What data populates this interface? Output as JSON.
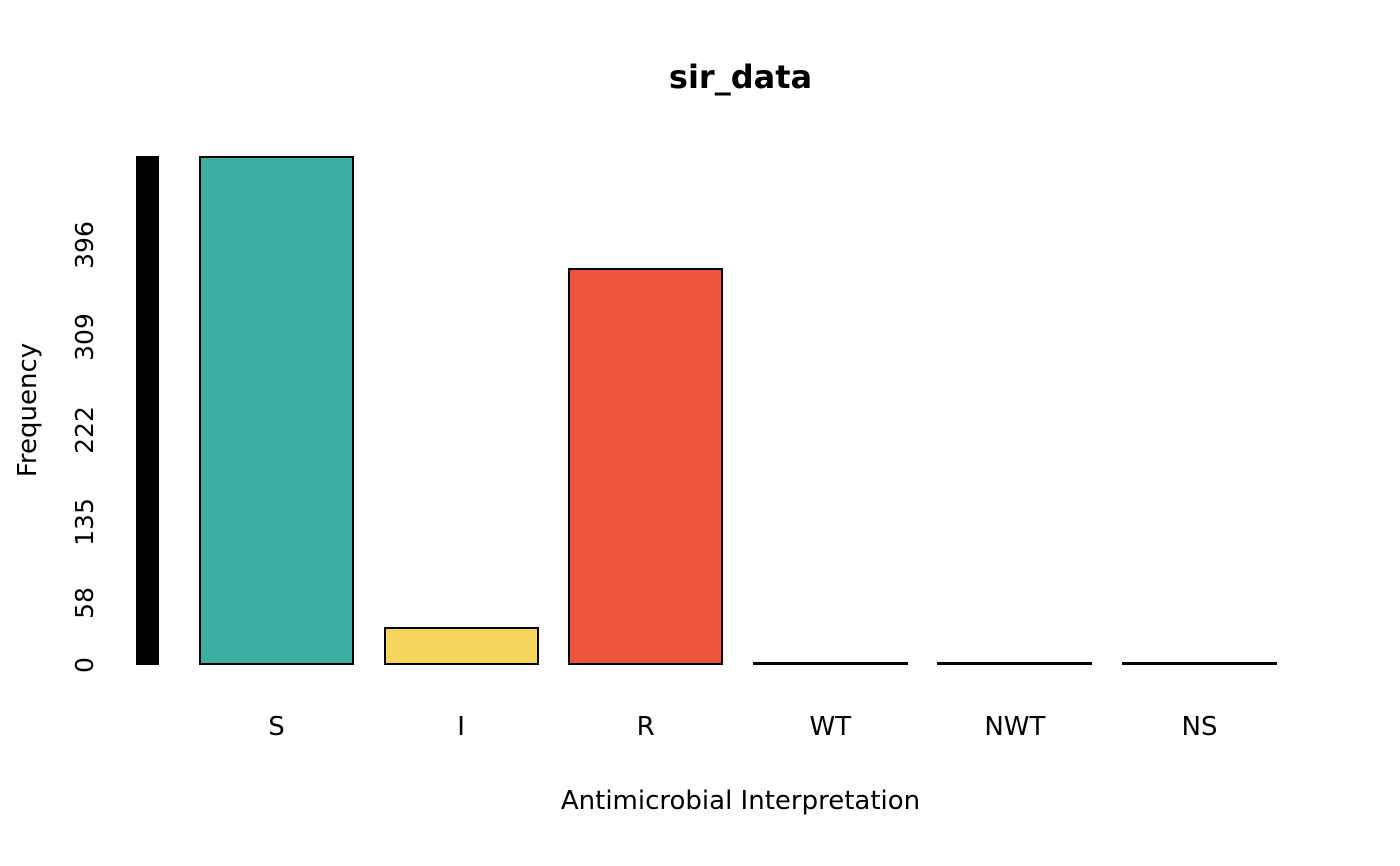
{
  "chart_data": {
    "type": "bar",
    "title": "sir_data",
    "xlabel": "Antimicrobial Interpretation",
    "ylabel": "Frequency",
    "categories": [
      "S",
      "I",
      "R",
      "WT",
      "NWT",
      "NS"
    ],
    "values": [
      480,
      36,
      374,
      0,
      0,
      0
    ],
    "bar_colors": [
      "#3CAEA3",
      "#F6D55C",
      "#ED553B",
      "#000000",
      "#000000",
      "#000000"
    ],
    "bar_border_color": "#000000",
    "yticks": [
      0,
      58,
      135,
      222,
      309,
      396
    ],
    "ylim": [
      0,
      480
    ],
    "y_axis_marker_bar": {
      "value": 480,
      "color": "#000000"
    },
    "grid": false,
    "legend": "none",
    "background_color": "#ffffff"
  }
}
